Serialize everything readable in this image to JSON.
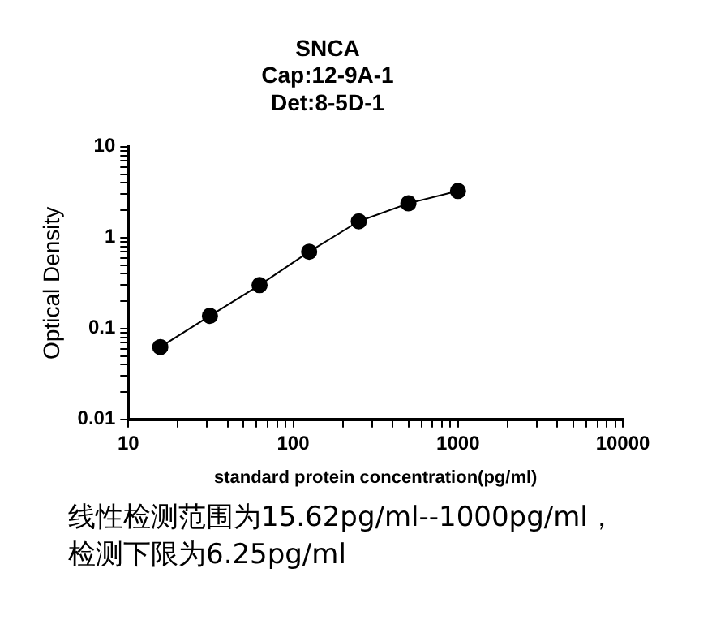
{
  "chart_data": {
    "type": "line",
    "title": "SNCA",
    "subtitle": "Cap:12-9A-1\nDet:8-5D-1",
    "xlabel": "standard protein concentration(pg/ml)",
    "ylabel": "Optical Density",
    "x": [
      15.62,
      31.25,
      62.5,
      125,
      250,
      500,
      1000
    ],
    "series": [
      {
        "color": "#000000",
        "values": [
          0.0625,
          0.138,
          0.3,
          0.7,
          1.51,
          2.38,
          3.26
        ]
      }
    ],
    "log": "xy",
    "xlim": [
      10,
      10000
    ],
    "ylim": [
      0.01,
      10
    ],
    "xticks": [
      10,
      {
        "value": 20,
        "label": null
      },
      {
        "value": 30,
        "label": null
      },
      {
        "value": 40,
        "label": null
      },
      {
        "value": 50,
        "label": null
      },
      {
        "value": 60,
        "label": null
      },
      {
        "value": 70,
        "label": null
      },
      {
        "value": 80,
        "label": null
      },
      {
        "value": 90,
        "label": null
      },
      100,
      {
        "value": 200,
        "label": null
      },
      {
        "value": 300,
        "label": null
      },
      {
        "value": 400,
        "label": null
      },
      {
        "value": 500,
        "label": null
      },
      {
        "value": 600,
        "label": null
      },
      {
        "value": 700,
        "label": null
      },
      {
        "value": 800,
        "label": null
      },
      {
        "value": 900,
        "label": null
      },
      1000,
      {
        "value": 2000,
        "label": null
      },
      {
        "value": 3000,
        "label": null
      },
      {
        "value": 4000,
        "label": null
      },
      {
        "value": 5000,
        "label": null
      },
      {
        "value": 6000,
        "label": null
      },
      {
        "value": 7000,
        "label": null
      },
      {
        "value": 8000,
        "label": null
      },
      {
        "value": 9000,
        "label": null
      },
      10000
    ],
    "yticks": [
      0.01,
      {
        "value": 0.02,
        "label": null
      },
      {
        "value": 0.03,
        "label": null
      },
      {
        "value": 0.04,
        "label": null
      },
      {
        "value": 0.05,
        "label": null
      },
      {
        "value": 0.06,
        "label": null
      },
      {
        "value": 0.07,
        "label": null
      },
      {
        "value": 0.08,
        "label": null
      },
      {
        "value": 0.09,
        "label": null
      },
      0.1,
      {
        "value": 0.2,
        "label": null
      },
      {
        "value": 0.3,
        "label": null
      },
      {
        "value": 0.4,
        "label": null
      },
      {
        "value": 0.5,
        "label": null
      },
      {
        "value": 0.6,
        "label": null
      },
      {
        "value": 0.7,
        "label": null
      },
      {
        "value": 0.8,
        "label": null
      },
      {
        "value": 0.9,
        "label": null
      },
      1,
      {
        "value": 2,
        "label": null
      },
      {
        "value": 3,
        "label": null
      },
      {
        "value": 4,
        "label": null
      },
      {
        "value": 5,
        "label": null
      },
      {
        "value": 6,
        "label": null
      },
      {
        "value": 7,
        "label": null
      },
      {
        "value": 8,
        "label": null
      },
      {
        "value": 9,
        "label": null
      },
      10
    ],
    "grid": false,
    "legend": false,
    "marker": "circle",
    "line_style": "solid",
    "annotations": [
      "线性检测范围为15.62pg/ml--1000pg/ml，",
      "检测下限为6.25pg/ml"
    ]
  }
}
